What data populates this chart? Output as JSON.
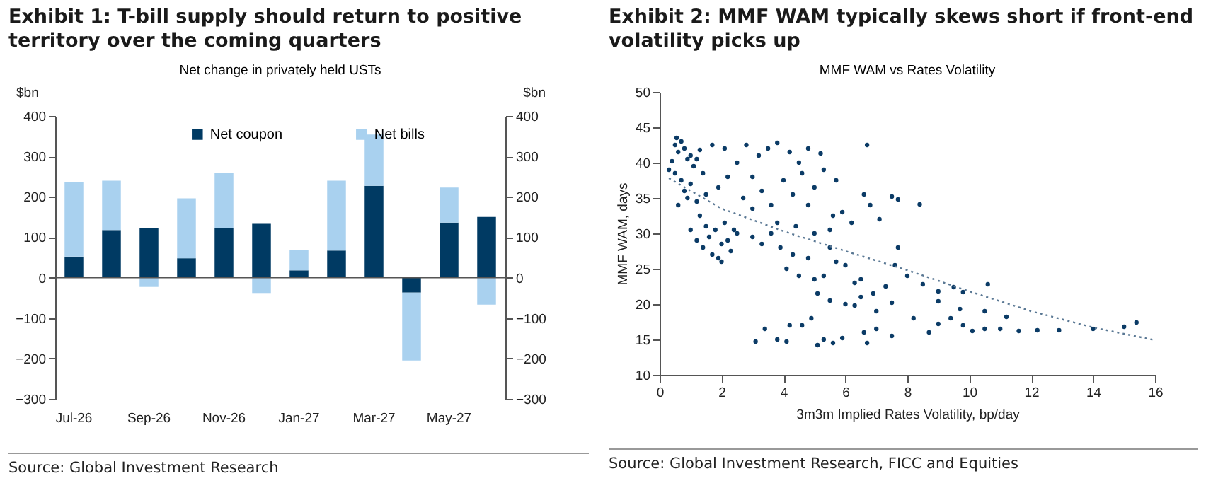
{
  "chart_data": [
    {
      "type": "bar",
      "title": "Exhibit 1: T-bill supply should return to positive territory over the coming quarters",
      "subtitle": "Net change in privately held USTs",
      "ylabel": "$bn",
      "y2label": "$bn",
      "categories": [
        "Jul-26",
        null,
        "Sep-26",
        null,
        "Nov-26",
        null,
        "Jan-27",
        null,
        "Mar-27",
        null,
        "May-27",
        null
      ],
      "stacked": true,
      "legend": "top",
      "series": [
        {
          "name": "Net coupon",
          "color": "#003a63",
          "values": [
            52,
            118,
            122,
            48,
            122,
            133,
            18,
            67,
            227,
            -37,
            136,
            150
          ]
        },
        {
          "name": "Net bills",
          "color": "#a9d1ef",
          "values": [
            184,
            122,
            -23,
            148,
            138,
            -38,
            50,
            173,
            127,
            -168,
            87,
            -67
          ]
        }
      ],
      "ylim": [
        -300,
        400
      ],
      "yticks": [
        -300,
        -200,
        -100,
        0,
        100,
        200,
        300,
        400
      ],
      "y2lim": [
        -300,
        400
      ],
      "y2ticks": [
        -300,
        -200,
        -100,
        0,
        100,
        200,
        300,
        400
      ],
      "annotations": [
        "Source: Global Investment Research"
      ]
    },
    {
      "type": "scatter",
      "title": "Exhibit 2: MMF WAM typically skews short if front-end volatility picks up",
      "subtitle": "MMF WAM vs Rates Volatility",
      "xlabel": "3m3m Implied Rates Volatility, bp/day",
      "ylabel": "MMF WAM, days",
      "marker": "circle",
      "xlim": [
        0,
        16
      ],
      "xticks": [
        0,
        2,
        4,
        6,
        8,
        10,
        12,
        14,
        16
      ],
      "ylim": [
        10,
        50
      ],
      "yticks": [
        10,
        15,
        20,
        25,
        30,
        35,
        40,
        45,
        50
      ],
      "series": [
        {
          "type": "scatter",
          "color": "#0b3b66",
          "x": [
            0.3,
            0.4,
            0.5,
            0.55,
            0.6,
            0.7,
            0.8,
            0.9,
            1.0,
            1.1,
            1.2,
            1.3,
            0.7,
            0.8,
            0.9,
            1.0,
            0.6,
            1.2,
            1.5,
            1.4,
            0.5,
            1.7,
            1.9,
            2.2,
            1.0,
            1.2,
            1.4,
            1.5,
            1.6,
            1.7,
            1.8,
            1.9,
            2.0,
            2.1,
            2.2,
            2.3,
            2.4,
            1.3,
            2.0,
            2.1,
            2.5,
            2.8,
            3.0,
            3.2,
            3.5,
            3.8,
            4.2,
            4.5,
            4.8,
            5.2,
            2.7,
            3.0,
            3.3,
            3.6,
            4.0,
            4.3,
            4.6,
            5.0,
            5.3,
            5.7,
            4.8,
            3.8,
            4.4,
            2.5,
            3.0,
            3.3,
            3.6,
            3.9,
            4.1,
            4.3,
            4.5,
            4.8,
            5.0,
            5.3,
            5.5,
            5.7,
            5.0,
            5.5,
            6.0,
            6.3,
            5.6,
            5.9,
            6.2,
            6.6,
            6.8,
            7.1,
            7.5,
            7.7,
            8.4,
            6.7,
            6.5,
            6.9,
            7.3,
            7.6,
            7.7,
            8.0,
            8.5,
            9.0,
            9.5,
            9.8,
            10.6,
            5.1,
            5.5,
            6.0,
            6.5,
            6.3,
            7.0,
            7.5,
            9.7,
            9.0,
            10.5,
            3.1,
            3.4,
            3.8,
            4.1,
            4.2,
            4.6,
            4.9,
            5.1,
            5.3,
            5.6,
            5.9,
            6.6,
            6.7,
            7.0,
            7.5,
            8.2,
            8.7,
            9.0,
            9.4,
            9.8,
            10.1,
            10.5,
            11.0,
            11.2,
            11.6,
            12.2,
            12.9,
            14.0,
            15.0,
            15.4
          ],
          "values": [
            39,
            40.2,
            42.5,
            43.5,
            41.5,
            43,
            42,
            40.5,
            41,
            39.5,
            40.5,
            41.8,
            37.5,
            36,
            35,
            37,
            34,
            34.5,
            35.5,
            38.5,
            38.5,
            42.5,
            36.5,
            38,
            30.5,
            29,
            28,
            31,
            29.5,
            27,
            30.5,
            26.5,
            28.5,
            31.5,
            29,
            27.5,
            30.5,
            32.5,
            26,
            42,
            40,
            42.5,
            38,
            41,
            42,
            42.8,
            41.5,
            40,
            42,
            41.3,
            35,
            33.5,
            36,
            34,
            37.5,
            35.5,
            38.5,
            36.5,
            39,
            37.5,
            34,
            31.5,
            31,
            30,
            29.5,
            28.5,
            30,
            28,
            25,
            27,
            24,
            26.5,
            23.5,
            24,
            28,
            26,
            30,
            30.5,
            25.5,
            23,
            32.5,
            33,
            31.5,
            35.5,
            34,
            32,
            35.2,
            34.8,
            34.1,
            42.5,
            23.5,
            21.5,
            22.5,
            25.5,
            28,
            24,
            22.8,
            21.8,
            22.4,
            21.7,
            22.8,
            21.5,
            20.5,
            20,
            21,
            19.8,
            19,
            20.2,
            19.3,
            20.4,
            19,
            14.7,
            16.5,
            15,
            14.7,
            17,
            17,
            18,
            14.2,
            15,
            14.5,
            15.2,
            16,
            14.5,
            16.5,
            15.5,
            18,
            16,
            17.2,
            18,
            17,
            16.2,
            16.5,
            16.5,
            18.2,
            16.2,
            16.3,
            16.3,
            16.5,
            16.8,
            17.4
          ]
        },
        {
          "type": "line",
          "color": "#5a7894",
          "line_style": "dotted",
          "marker": "none",
          "x": [
            0.3,
            2,
            4,
            6,
            8,
            10,
            12,
            14,
            16
          ],
          "values": [
            37.8,
            33.5,
            30.3,
            27.5,
            24.8,
            21.8,
            19,
            16.7,
            14.9
          ]
        }
      ],
      "annotations": [
        "Source: Global Investment Research, FICC and Equities"
      ]
    }
  ]
}
